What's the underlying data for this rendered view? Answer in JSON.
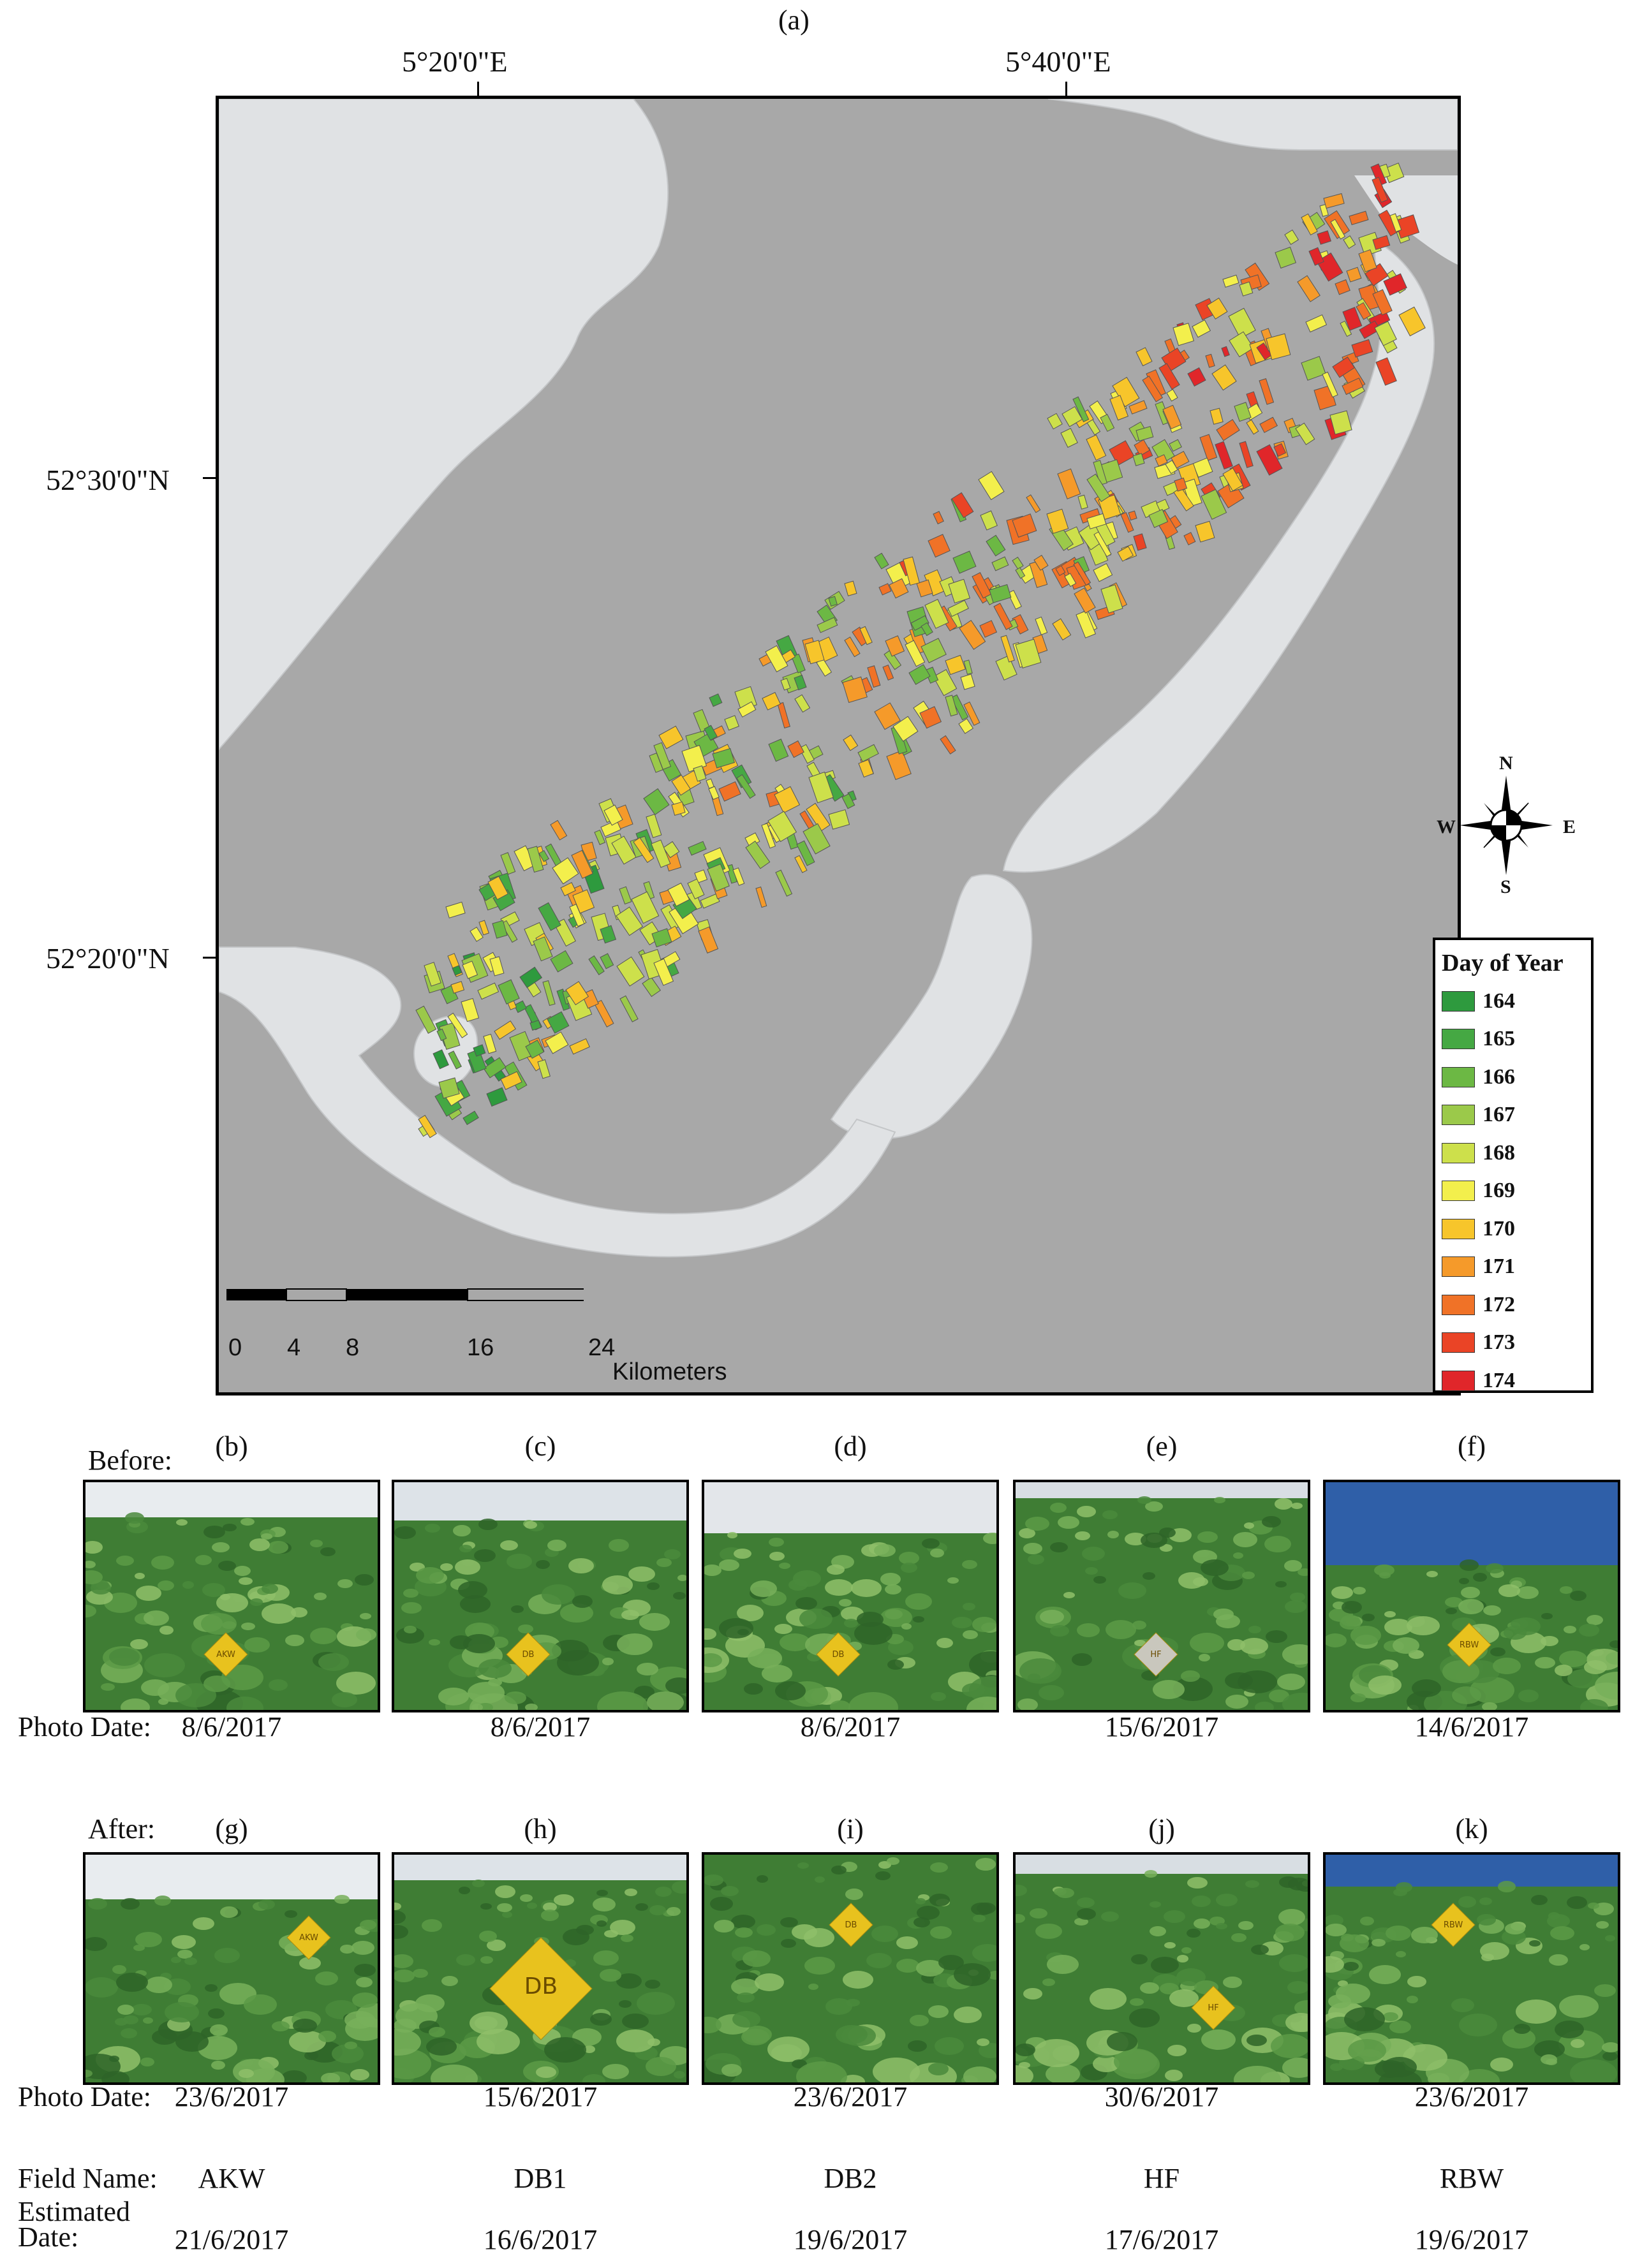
{
  "panel_a": {
    "label": "(a)",
    "lon_labels": [
      "5°20'0\"E",
      "5°40'0\"E"
    ],
    "lat_labels": [
      "52°30'0\"N",
      "52°20'0\"N"
    ],
    "scale": {
      "ticks": [
        "0",
        "4",
        "8",
        "16",
        "24"
      ],
      "unit": "Kilometers"
    },
    "compass": {
      "n": "N",
      "s": "S",
      "e": "E",
      "w": "W"
    },
    "legend": {
      "title": "Day of Year",
      "items": [
        {
          "label": "164",
          "color": "#2e9a3e"
        },
        {
          "label": "165",
          "color": "#45a843"
        },
        {
          "label": "166",
          "color": "#6cb844"
        },
        {
          "label": "167",
          "color": "#9bc94a"
        },
        {
          "label": "168",
          "color": "#cde04b"
        },
        {
          "label": "169",
          "color": "#f3ef4c"
        },
        {
          "label": "170",
          "color": "#f7c52b"
        },
        {
          "label": "171",
          "color": "#f59a2a"
        },
        {
          "label": "172",
          "color": "#f07227"
        },
        {
          "label": "173",
          "color": "#ea4426"
        },
        {
          "label": "174",
          "color": "#e0262a"
        }
      ]
    },
    "colors": {
      "water": "#a8a8a8",
      "land": "#e0e2e4",
      "polder": "#a8a8a8"
    }
  },
  "photos": {
    "before_label": "Before:",
    "after_label": "After:",
    "photo_date_label": "Photo Date:",
    "field_name_label": "Field Name:",
    "estimated_date_label_1": "Estimated",
    "estimated_date_label_2": "Date:",
    "columns": [
      {
        "before_letter": "(b)",
        "after_letter": "(g)",
        "before_date": "8/6/2017",
        "after_date": "23/6/2017",
        "field": "AKW",
        "estimated": "21/6/2017",
        "sign_text": "AKW"
      },
      {
        "before_letter": "(c)",
        "after_letter": "(h)",
        "before_date": "8/6/2017",
        "after_date": "15/6/2017",
        "field": "DB1",
        "estimated": "16/6/2017",
        "sign_text": "DB"
      },
      {
        "before_letter": "(d)",
        "after_letter": "(i)",
        "before_date": "8/6/2017",
        "after_date": "23/6/2017",
        "field": "DB2",
        "estimated": "19/6/2017",
        "sign_text": "DB"
      },
      {
        "before_letter": "(e)",
        "after_letter": "(j)",
        "before_date": "15/6/2017",
        "after_date": "30/6/2017",
        "field": "HF",
        "estimated": "17/6/2017",
        "sign_text": "HF"
      },
      {
        "before_letter": "(f)",
        "after_letter": "(k)",
        "before_date": "14/6/2017",
        "after_date": "23/6/2017",
        "field": "RBW",
        "estimated": "19/6/2017",
        "sign_text": "RBW"
      }
    ]
  }
}
